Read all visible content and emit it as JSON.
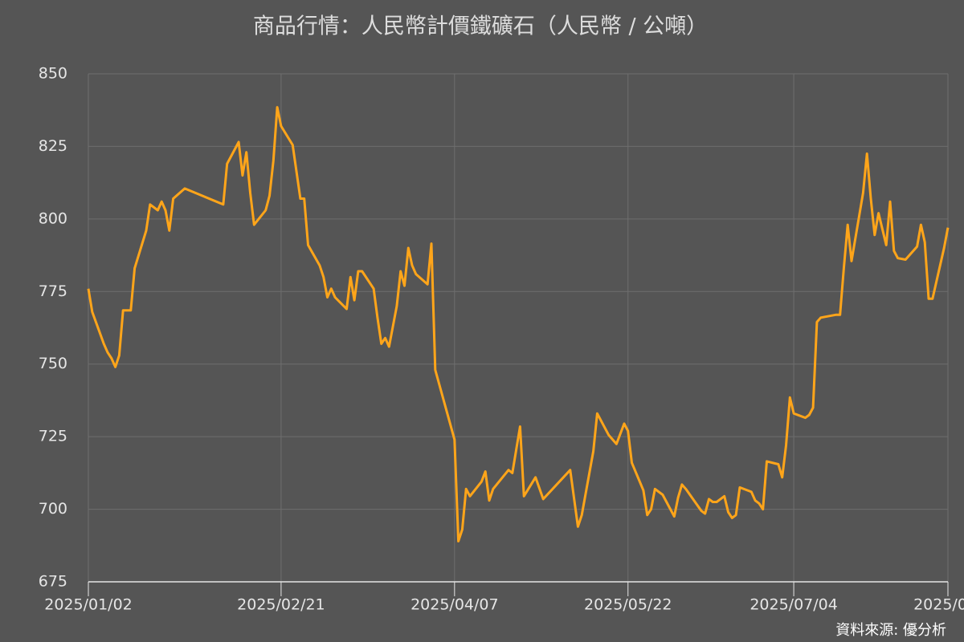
{
  "chart_data": {
    "type": "line",
    "title": "商品行情：人民幣計價鐵礦石（人民幣 / 公噸）",
    "source": "資料來源: 優分析",
    "color": "#ffa51a",
    "grid": true,
    "x": [
      "2025-01-02",
      "2025-01-03",
      "2025-01-06",
      "2025-01-07",
      "2025-01-08",
      "2025-01-09",
      "2025-01-10",
      "2025-01-11",
      "2025-01-13",
      "2025-01-14",
      "2025-01-17",
      "2025-01-18",
      "2025-01-20",
      "2025-01-21",
      "2025-01-22",
      "2025-01-23",
      "2025-01-24",
      "2025-01-27",
      "2025-02-06",
      "2025-02-07",
      "2025-02-10",
      "2025-02-11",
      "2025-02-12",
      "2025-02-13",
      "2025-02-14",
      "2025-02-17",
      "2025-02-18",
      "2025-02-19",
      "2025-02-20",
      "2025-02-21",
      "2025-02-24",
      "2025-02-26",
      "2025-02-27",
      "2025-02-28",
      "2025-03-03",
      "2025-03-04",
      "2025-03-05",
      "2025-03-06",
      "2025-03-07",
      "2025-03-10",
      "2025-03-11",
      "2025-03-12",
      "2025-03-13",
      "2025-03-14",
      "2025-03-17",
      "2025-03-18",
      "2025-03-19",
      "2025-03-20",
      "2025-03-21",
      "2025-03-23",
      "2025-03-24",
      "2025-03-25",
      "2025-03-26",
      "2025-03-27",
      "2025-03-28",
      "2025-03-31",
      "2025-04-01",
      "2025-04-02",
      "2025-04-07",
      "2025-04-08",
      "2025-04-09",
      "2025-04-10",
      "2025-04-11",
      "2025-04-14",
      "2025-04-15",
      "2025-04-16",
      "2025-04-17",
      "2025-04-21",
      "2025-04-22",
      "2025-04-24",
      "2025-04-25",
      "2025-04-28",
      "2025-04-30",
      "2025-05-07",
      "2025-05-09",
      "2025-05-10",
      "2025-05-13",
      "2025-05-14",
      "2025-05-17",
      "2025-05-19",
      "2025-05-21",
      "2025-05-22",
      "2025-05-23",
      "2025-05-26",
      "2025-05-27",
      "2025-05-28",
      "2025-05-29",
      "2025-05-31",
      "2025-06-03",
      "2025-06-04",
      "2025-06-05",
      "2025-06-06",
      "2025-06-10",
      "2025-06-11",
      "2025-06-12",
      "2025-06-13",
      "2025-06-14",
      "2025-06-16",
      "2025-06-17",
      "2025-06-18",
      "2025-06-19",
      "2025-06-20",
      "2025-06-23",
      "2025-06-24",
      "2025-06-25",
      "2025-06-26",
      "2025-06-27",
      "2025-06-30",
      "2025-07-01",
      "2025-07-02",
      "2025-07-03",
      "2025-07-04",
      "2025-07-07",
      "2025-07-08",
      "2025-07-09",
      "2025-07-10",
      "2025-07-11",
      "2025-07-15",
      "2025-07-16",
      "2025-07-17",
      "2025-07-18",
      "2025-07-19",
      "2025-07-22",
      "2025-07-23",
      "2025-07-24",
      "2025-07-25",
      "2025-07-26",
      "2025-07-28",
      "2025-07-29",
      "2025-07-30",
      "2025-07-31",
      "2025-08-02",
      "2025-08-05",
      "2025-08-06",
      "2025-08-07",
      "2025-08-08",
      "2025-08-09",
      "2025-08-12",
      "2025-08-13"
    ],
    "values": [
      776,
      768,
      757,
      754,
      752,
      749,
      753,
      768.5,
      768.5,
      783,
      796,
      805,
      803,
      806,
      803,
      796,
      807,
      810.5,
      805,
      819,
      826.5,
      815,
      823,
      809,
      798,
      803,
      808,
      820,
      838.5,
      832,
      825.5,
      807,
      807,
      791,
      784,
      780,
      773,
      776,
      773,
      769,
      780,
      772,
      782,
      782,
      776,
      766,
      757,
      759,
      756,
      770,
      782,
      777,
      790,
      784,
      781,
      777.5,
      791.5,
      748,
      724,
      689,
      693,
      707,
      704.5,
      709.5,
      713,
      703,
      707,
      713.5,
      712.5,
      728.5,
      704.5,
      711,
      703.5,
      713.5,
      694,
      698,
      720,
      733,
      725.5,
      722.5,
      729.5,
      727,
      716,
      706.5,
      698,
      700,
      707,
      705,
      697.5,
      704,
      708.5,
      707,
      699.5,
      698.5,
      703.5,
      702.5,
      702.5,
      704.5,
      699,
      697,
      698,
      707.5,
      706,
      703,
      702,
      700,
      716.5,
      715.5,
      711,
      722,
      738.5,
      733,
      731.5,
      732.5,
      735,
      764.5,
      766,
      767,
      767,
      783,
      798,
      785.5,
      809,
      822.5,
      807,
      794.5,
      802,
      791,
      806,
      789,
      786.5,
      786,
      790.5,
      798,
      792,
      772.5,
      772.5,
      790,
      797
    ],
    "xlim": [
      "2025-01-02",
      "2025-08-13"
    ],
    "xticks": [
      {
        "value": "2025-01-02",
        "label": "2025/01/02"
      },
      {
        "value": "2025-02-21",
        "label": "2025/02/21"
      },
      {
        "value": "2025-04-07",
        "label": "2025/04/07"
      },
      {
        "value": "2025-05-22",
        "label": "2025/05/22"
      },
      {
        "value": "2025-07-04",
        "label": "2025/07/04"
      },
      {
        "value": "2025-08-13",
        "label": "2025/0…"
      }
    ],
    "ylim": [
      675,
      850
    ],
    "yticks": [
      675,
      700,
      725,
      750,
      775,
      800,
      825,
      850
    ]
  }
}
